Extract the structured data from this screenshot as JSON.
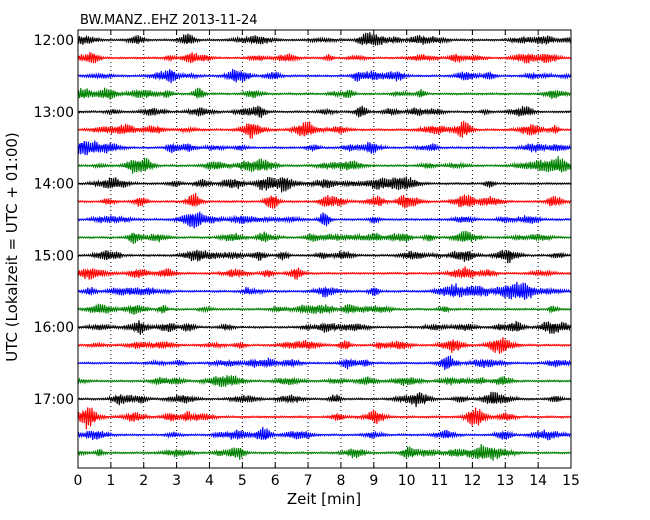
{
  "chart_data": {
    "type": "line",
    "title": "BW.MANZ..EHZ 2013-11-24",
    "xlabel": "Zeit  [min]",
    "ylabel": "UTC (Lokalzeit = UTC + 01:00)",
    "xlim": [
      0,
      15
    ],
    "x_ticks": [
      "0",
      "1",
      "2",
      "3",
      "4",
      "5",
      "6",
      "7",
      "8",
      "9",
      "10",
      "11",
      "12",
      "13",
      "14",
      "15"
    ],
    "y_tick_labels": [
      "12:00",
      "13:00",
      "14:00",
      "15:00",
      "16:00",
      "17:00"
    ],
    "grid": "vertical dotted lines at each minute",
    "line_colors": [
      "#000000",
      "#ff0000",
      "#0000ff",
      "#008000"
    ],
    "row_start_times": [
      "12:00",
      "12:15",
      "12:30",
      "12:45",
      "13:00",
      "13:15",
      "13:30",
      "13:45",
      "14:00",
      "14:15",
      "14:30",
      "14:45",
      "15:00",
      "15:15",
      "15:30",
      "15:45",
      "16:00",
      "16:15",
      "16:30",
      "16:45",
      "17:00",
      "17:15",
      "17:30",
      "17:45"
    ],
    "rows_per_hour": 4,
    "minutes_per_row": 15
  }
}
